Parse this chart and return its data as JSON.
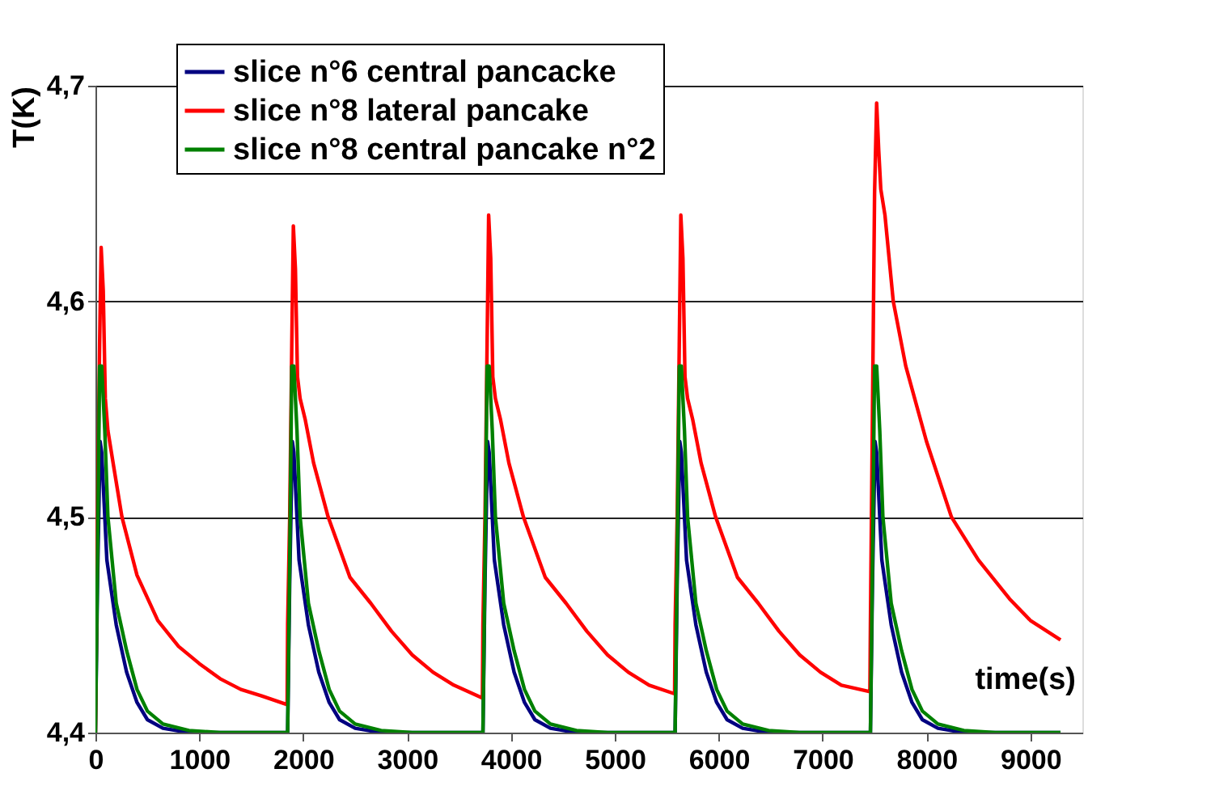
{
  "chart_data": {
    "type": "line",
    "xlabel": "time(s)",
    "ylabel": "T(K)",
    "xlim": [
      0,
      9500
    ],
    "xticks": [
      0,
      1000,
      2000,
      3000,
      4000,
      5000,
      6000,
      7000,
      8000,
      9000
    ],
    "ylim": [
      4.4,
      4.7
    ],
    "yticks": [
      {
        "value": 4.4,
        "label": "4,4"
      },
      {
        "value": 4.5,
        "label": "4,5"
      },
      {
        "value": 4.6,
        "label": "4,6"
      },
      {
        "value": 4.7,
        "label": "4,7"
      }
    ],
    "grid": "y",
    "legend": "top left",
    "marker": "none",
    "line_style": "solid",
    "series": [
      {
        "name": "slice n°6 central pancacke",
        "color": "#000080",
        "x": [
          0,
          20,
          45,
          60,
          80,
          110,
          200,
          300,
          400,
          500,
          650,
          900,
          1845,
          1850,
          1870,
          1895,
          1910,
          1930,
          1960,
          2050,
          2150,
          2250,
          2350,
          2500,
          2750,
          3725,
          3730,
          3750,
          3775,
          3790,
          3810,
          3840,
          3930,
          4030,
          4130,
          4230,
          4380,
          4630,
          5575,
          5580,
          5600,
          5625,
          5640,
          5660,
          5690,
          5780,
          5880,
          5980,
          6080,
          6230,
          6480,
          7455,
          7460,
          7480,
          7505,
          7520,
          7540,
          7570,
          7660,
          7760,
          7860,
          7960,
          8110,
          8360,
          9290
        ],
        "values": [
          4.4,
          4.47,
          4.535,
          4.53,
          4.51,
          4.48,
          4.45,
          4.428,
          4.414,
          4.406,
          4.402,
          4.4,
          4.4,
          4.4,
          4.47,
          4.535,
          4.53,
          4.51,
          4.48,
          4.45,
          4.428,
          4.414,
          4.406,
          4.402,
          4.4,
          4.4,
          4.4,
          4.47,
          4.535,
          4.53,
          4.51,
          4.48,
          4.45,
          4.428,
          4.414,
          4.406,
          4.402,
          4.4,
          4.4,
          4.4,
          4.47,
          4.535,
          4.53,
          4.51,
          4.48,
          4.45,
          4.428,
          4.414,
          4.406,
          4.402,
          4.4,
          4.4,
          4.4,
          4.47,
          4.535,
          4.53,
          4.51,
          4.48,
          4.45,
          4.428,
          4.414,
          4.406,
          4.402,
          4.4,
          4.4
        ]
      },
      {
        "name": "slice n°8 lateral pancake",
        "color": "#ff0000",
        "x": [
          0,
          20,
          40,
          55,
          75,
          95,
          120,
          170,
          255,
          400,
          600,
          800,
          1000,
          1200,
          1400,
          1600,
          1845,
          1850,
          1870,
          1890,
          1905,
          1925,
          1945,
          1970,
          2020,
          2100,
          2240,
          2450,
          2650,
          2850,
          3050,
          3250,
          3450,
          3725,
          3730,
          3750,
          3770,
          3785,
          3805,
          3825,
          3850,
          3900,
          3980,
          4120,
          4330,
          4530,
          4730,
          4930,
          5130,
          5330,
          5575,
          5580,
          5600,
          5620,
          5635,
          5655,
          5675,
          5700,
          5750,
          5830,
          5970,
          6180,
          6380,
          6580,
          6780,
          6980,
          7180,
          7455,
          7460,
          7480,
          7500,
          7520,
          7540,
          7560,
          7600,
          7680,
          7800,
          8000,
          8240,
          8500,
          8800,
          9000,
          9290
        ],
        "values": [
          4.4,
          4.5,
          4.58,
          4.625,
          4.605,
          4.555,
          4.54,
          4.525,
          4.5,
          4.473,
          4.452,
          4.44,
          4.432,
          4.425,
          4.42,
          4.417,
          4.413,
          4.45,
          4.5,
          4.58,
          4.635,
          4.615,
          4.565,
          4.555,
          4.545,
          4.525,
          4.5,
          4.472,
          4.46,
          4.447,
          4.436,
          4.428,
          4.422,
          4.416,
          4.45,
          4.5,
          4.58,
          4.64,
          4.62,
          4.565,
          4.555,
          4.545,
          4.525,
          4.5,
          4.472,
          4.46,
          4.447,
          4.436,
          4.428,
          4.422,
          4.418,
          4.45,
          4.5,
          4.58,
          4.64,
          4.62,
          4.565,
          4.555,
          4.545,
          4.525,
          4.5,
          4.472,
          4.46,
          4.447,
          4.436,
          4.428,
          4.422,
          4.419,
          4.45,
          4.55,
          4.65,
          4.692,
          4.67,
          4.652,
          4.64,
          4.6,
          4.57,
          4.535,
          4.5,
          4.48,
          4.462,
          4.452,
          4.443
        ]
      },
      {
        "name": "slice n°8 central pancake n°2",
        "color": "#008000",
        "x": [
          0,
          20,
          40,
          60,
          75,
          90,
          120,
          200,
          300,
          400,
          500,
          650,
          900,
          1200,
          1845,
          1850,
          1870,
          1890,
          1910,
          1925,
          1940,
          1970,
          2050,
          2150,
          2250,
          2350,
          2500,
          2750,
          3050,
          3725,
          3730,
          3750,
          3770,
          3790,
          3805,
          3820,
          3850,
          3930,
          4030,
          4130,
          4230,
          4380,
          4630,
          4930,
          5575,
          5580,
          5600,
          5620,
          5640,
          5655,
          5670,
          5700,
          5780,
          5880,
          5980,
          6080,
          6230,
          6480,
          6780,
          7455,
          7460,
          7480,
          7500,
          7520,
          7535,
          7550,
          7580,
          7660,
          7760,
          7860,
          7960,
          8110,
          8360,
          8660,
          9290
        ],
        "values": [
          4.4,
          4.48,
          4.57,
          4.57,
          4.555,
          4.54,
          4.5,
          4.46,
          4.438,
          4.42,
          4.41,
          4.404,
          4.401,
          4.4,
          4.4,
          4.4,
          4.48,
          4.57,
          4.57,
          4.555,
          4.54,
          4.5,
          4.46,
          4.438,
          4.42,
          4.41,
          4.404,
          4.401,
          4.4,
          4.4,
          4.4,
          4.48,
          4.57,
          4.57,
          4.555,
          4.54,
          4.5,
          4.46,
          4.438,
          4.42,
          4.41,
          4.404,
          4.401,
          4.4,
          4.4,
          4.4,
          4.48,
          4.57,
          4.57,
          4.555,
          4.54,
          4.5,
          4.46,
          4.438,
          4.42,
          4.41,
          4.404,
          4.401,
          4.4,
          4.4,
          4.4,
          4.48,
          4.57,
          4.57,
          4.555,
          4.54,
          4.5,
          4.46,
          4.438,
          4.42,
          4.41,
          4.404,
          4.401,
          4.4,
          4.4
        ]
      }
    ]
  }
}
